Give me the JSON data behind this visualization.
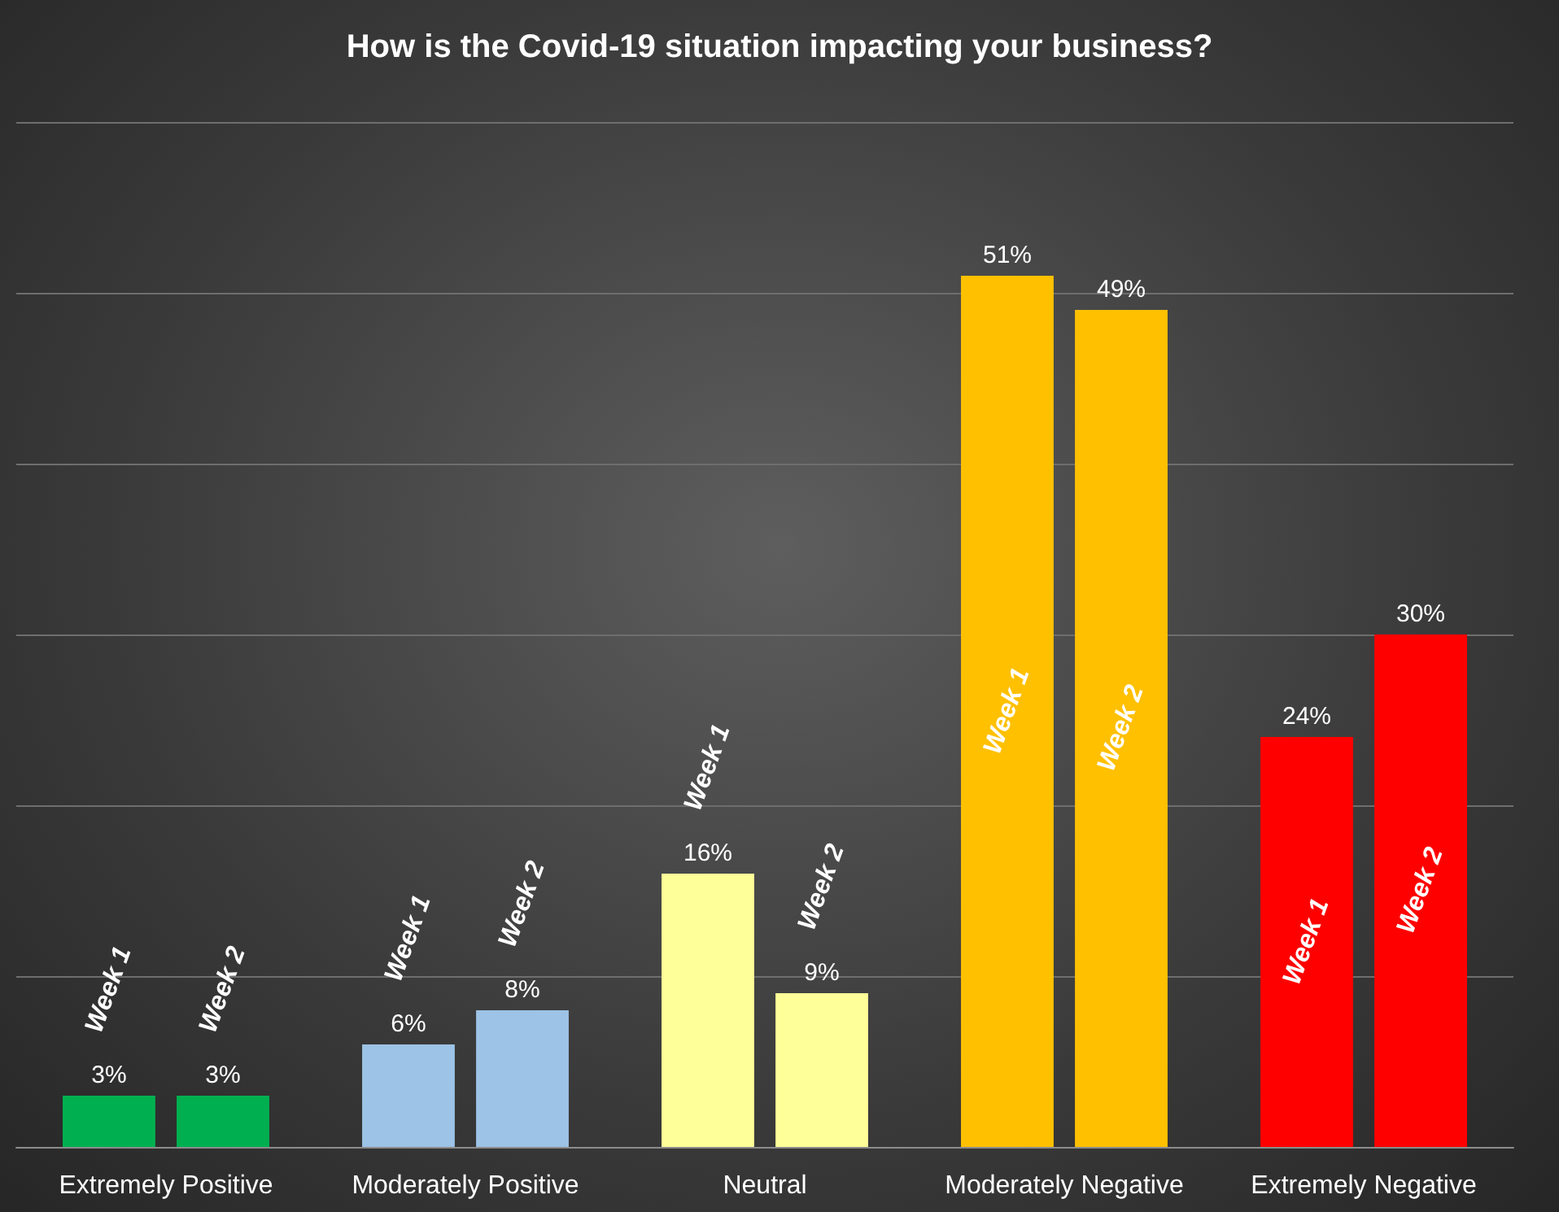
{
  "chart_data": {
    "type": "bar",
    "title": "How is the Covid-19 situation impacting your business?",
    "categories": [
      "Extremely Positive",
      "Moderately Positive",
      "Neutral",
      "Moderately Negative",
      "Extremely Negative"
    ],
    "series": [
      {
        "name": "Week 1",
        "colors": [
          "#00b050",
          "#9dc3e6",
          "#ffff99",
          "#ffc000",
          "#ff0000"
        ],
        "values": [
          3,
          6,
          16,
          51,
          24
        ],
        "value_labels": [
          "3%",
          "6%",
          "16%",
          "51%",
          "24%"
        ]
      },
      {
        "name": "Week 2",
        "colors": [
          "#00b050",
          "#9dc3e6",
          "#ffff99",
          "#ffc000",
          "#ff0000"
        ],
        "values": [
          3,
          8,
          9,
          49,
          30
        ],
        "value_labels": [
          "3%",
          "8%",
          "9%",
          "49%",
          "30%"
        ]
      }
    ],
    "ylim": [
      0,
      60
    ],
    "yticks": [
      {
        "value": 0,
        "label": null
      },
      {
        "value": 10,
        "label": null
      },
      {
        "value": 20,
        "label": null
      },
      {
        "value": 30,
        "label": null
      },
      {
        "value": 40,
        "label": null
      },
      {
        "value": 50,
        "label": null
      },
      {
        "value": 60,
        "label": null
      }
    ],
    "tick_labels": "x",
    "grid": "y",
    "legend": false
  }
}
